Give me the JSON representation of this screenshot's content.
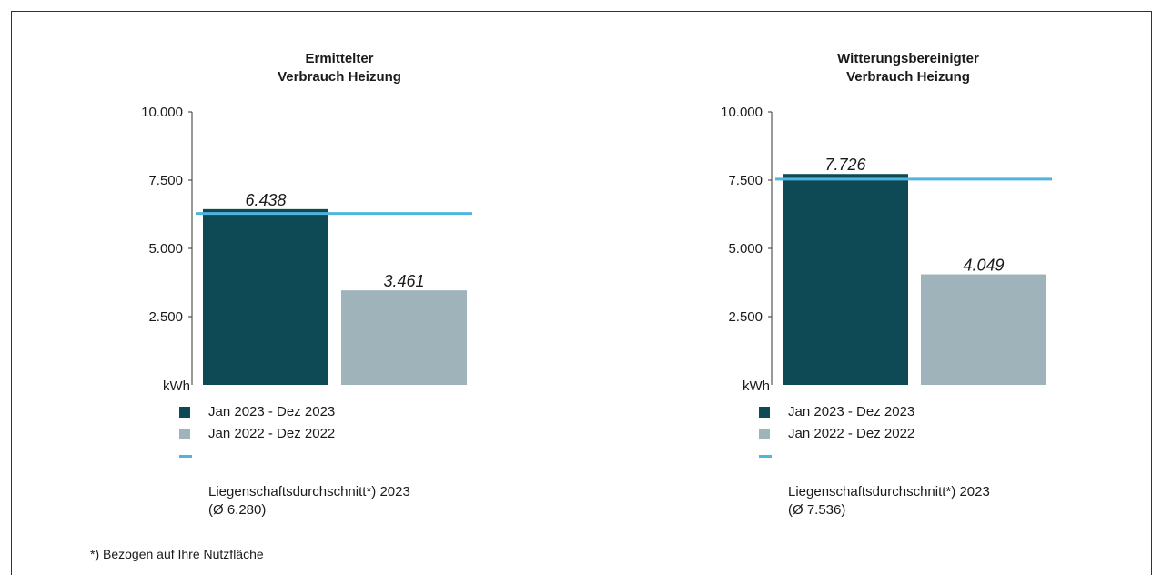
{
  "colors": {
    "current": "#0d4a55",
    "previous": "#9fb3bb",
    "average": "#4fb4de",
    "axis": "#333333"
  },
  "chart_data": [
    {
      "type": "bar",
      "title": "Ermittelter\nVerbrauch Heizung",
      "ylabel": "kWh",
      "ylim": [
        0,
        10000
      ],
      "yticks": [
        2500,
        5000,
        7500,
        10000
      ],
      "ytick_labels": [
        "2.500",
        "5.000",
        "7.500",
        "10.000"
      ],
      "categories": [
        "Jan 2023 - Dez 2023",
        "Jan 2022 - Dez 2022"
      ],
      "values": [
        6438,
        3461
      ],
      "value_labels": [
        "6.438",
        "3.461"
      ],
      "reference_line": {
        "value": 6280
      },
      "legend": [
        {
          "label": "Jan 2023 - Dez 2023",
          "marker": "square"
        },
        {
          "label": "Jan 2022 - Dez 2022",
          "marker": "square"
        },
        {
          "label": "Liegenschaftsdurchschnitt*) 2023\n(Ø 6.280)",
          "marker": "line"
        }
      ]
    },
    {
      "type": "bar",
      "title": "Witterungsbereinigter\nVerbrauch Heizung",
      "ylabel": "kWh",
      "ylim": [
        0,
        10000
      ],
      "yticks": [
        2500,
        5000,
        7500,
        10000
      ],
      "ytick_labels": [
        "2.500",
        "5.000",
        "7.500",
        "10.000"
      ],
      "categories": [
        "Jan 2023 - Dez 2023",
        "Jan 2022 - Dez 2022"
      ],
      "values": [
        7726,
        4049
      ],
      "value_labels": [
        "7.726",
        "4.049"
      ],
      "reference_line": {
        "value": 7536
      },
      "legend": [
        {
          "label": "Jan 2023 - Dez 2023",
          "marker": "square"
        },
        {
          "label": "Jan 2022 - Dez 2022",
          "marker": "square"
        },
        {
          "label": "Liegenschaftsdurchschnitt*) 2023\n(Ø 7.536)",
          "marker": "line"
        }
      ]
    }
  ],
  "footnote": "*) Bezogen auf Ihre Nutzfläche"
}
